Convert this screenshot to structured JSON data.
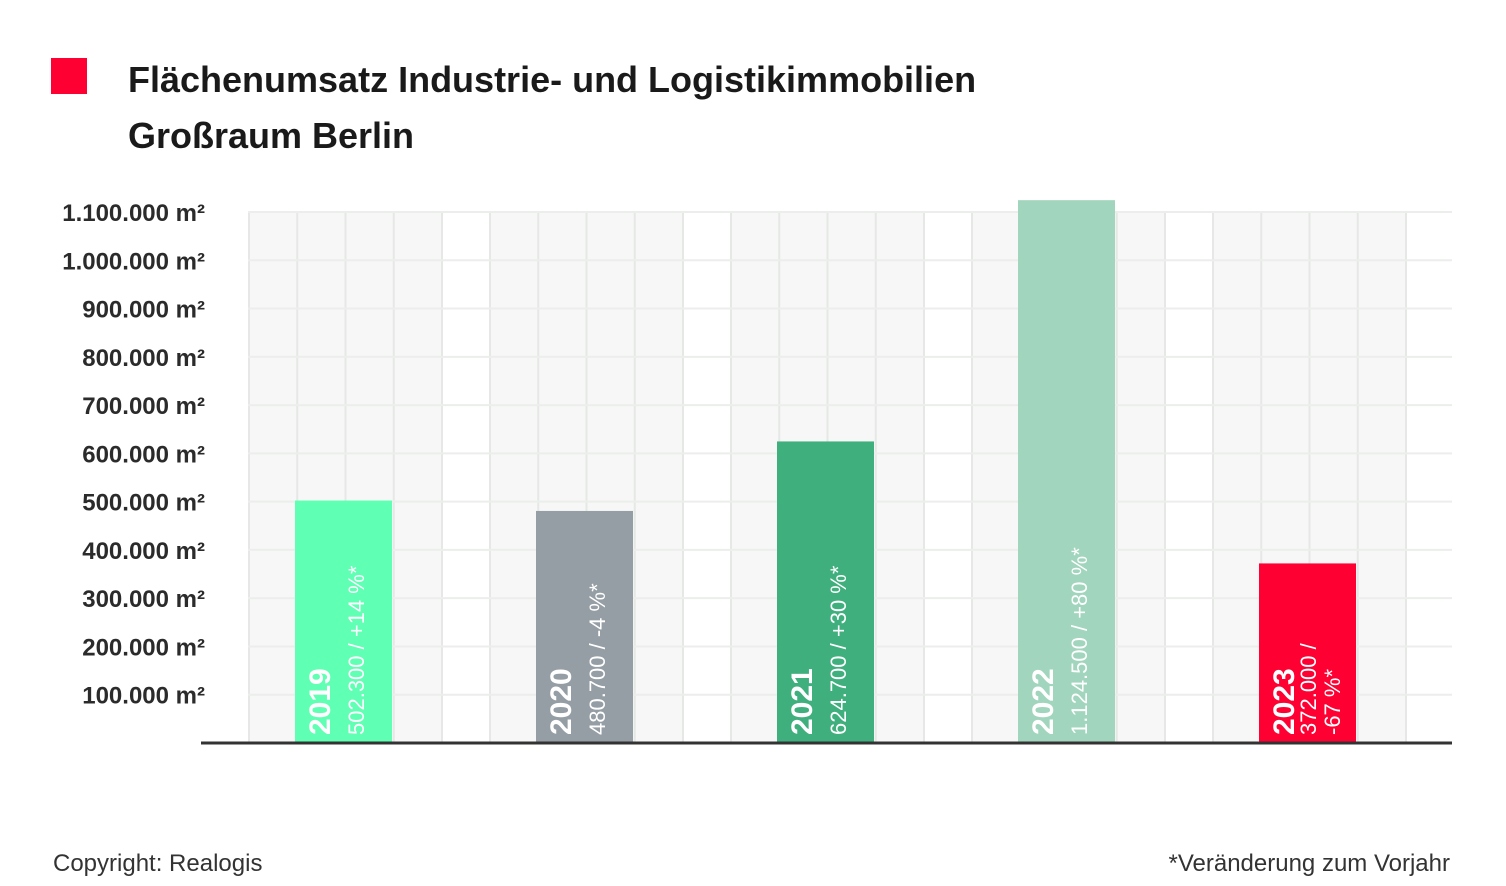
{
  "title": {
    "line1": "Flächenumsatz Industrie- und Logistikimmobilien",
    "line2": "Großraum Berlin"
  },
  "legend_marker_color": "#ff0033",
  "footer": {
    "copyright": "Copyright: Realogis",
    "note": "*Veränderung zum Vorjahr"
  },
  "chart_data": {
    "type": "bar",
    "title": "Flächenumsatz Industrie- und Logistikimmobilien Großraum Berlin",
    "categories": [
      "2019",
      "2020",
      "2021",
      "2022",
      "2023"
    ],
    "values": [
      502300,
      480700,
      624700,
      1124500,
      372000
    ],
    "bar_labels": [
      "502.300 / +14 %*",
      "480.700 / -4 %*",
      "624.700 / +30 %*",
      "1.124.500 / +80 %*",
      "372.000 / -67 %*"
    ],
    "bar_label_lines": [
      [
        "502.300 / +14 %*"
      ],
      [
        "480.700 / -4 %*"
      ],
      [
        "624.700 / +30 %*"
      ],
      [
        "1.124.500 / +80 %*"
      ],
      [
        "372.000 /",
        "-67 %*"
      ]
    ],
    "colors": [
      "#5fffb4",
      "#949ea4",
      "#3fb07d",
      "#a1d5bd",
      "#ff0033"
    ],
    "yticks": [
      100000,
      200000,
      300000,
      400000,
      500000,
      600000,
      700000,
      800000,
      900000,
      1000000,
      1100000
    ],
    "ytick_labels": [
      "100.000 m²",
      "200.000 m²",
      "300.000 m²",
      "400.000 m²",
      "500.000 m²",
      "600.000 m²",
      "700.000 m²",
      "800.000 m²",
      "900.000 m²",
      "1.000.000 m²",
      "1.100.000 m²"
    ],
    "ylim": [
      0,
      1100000
    ],
    "xlabel": "",
    "ylabel": "",
    "grid": true
  }
}
